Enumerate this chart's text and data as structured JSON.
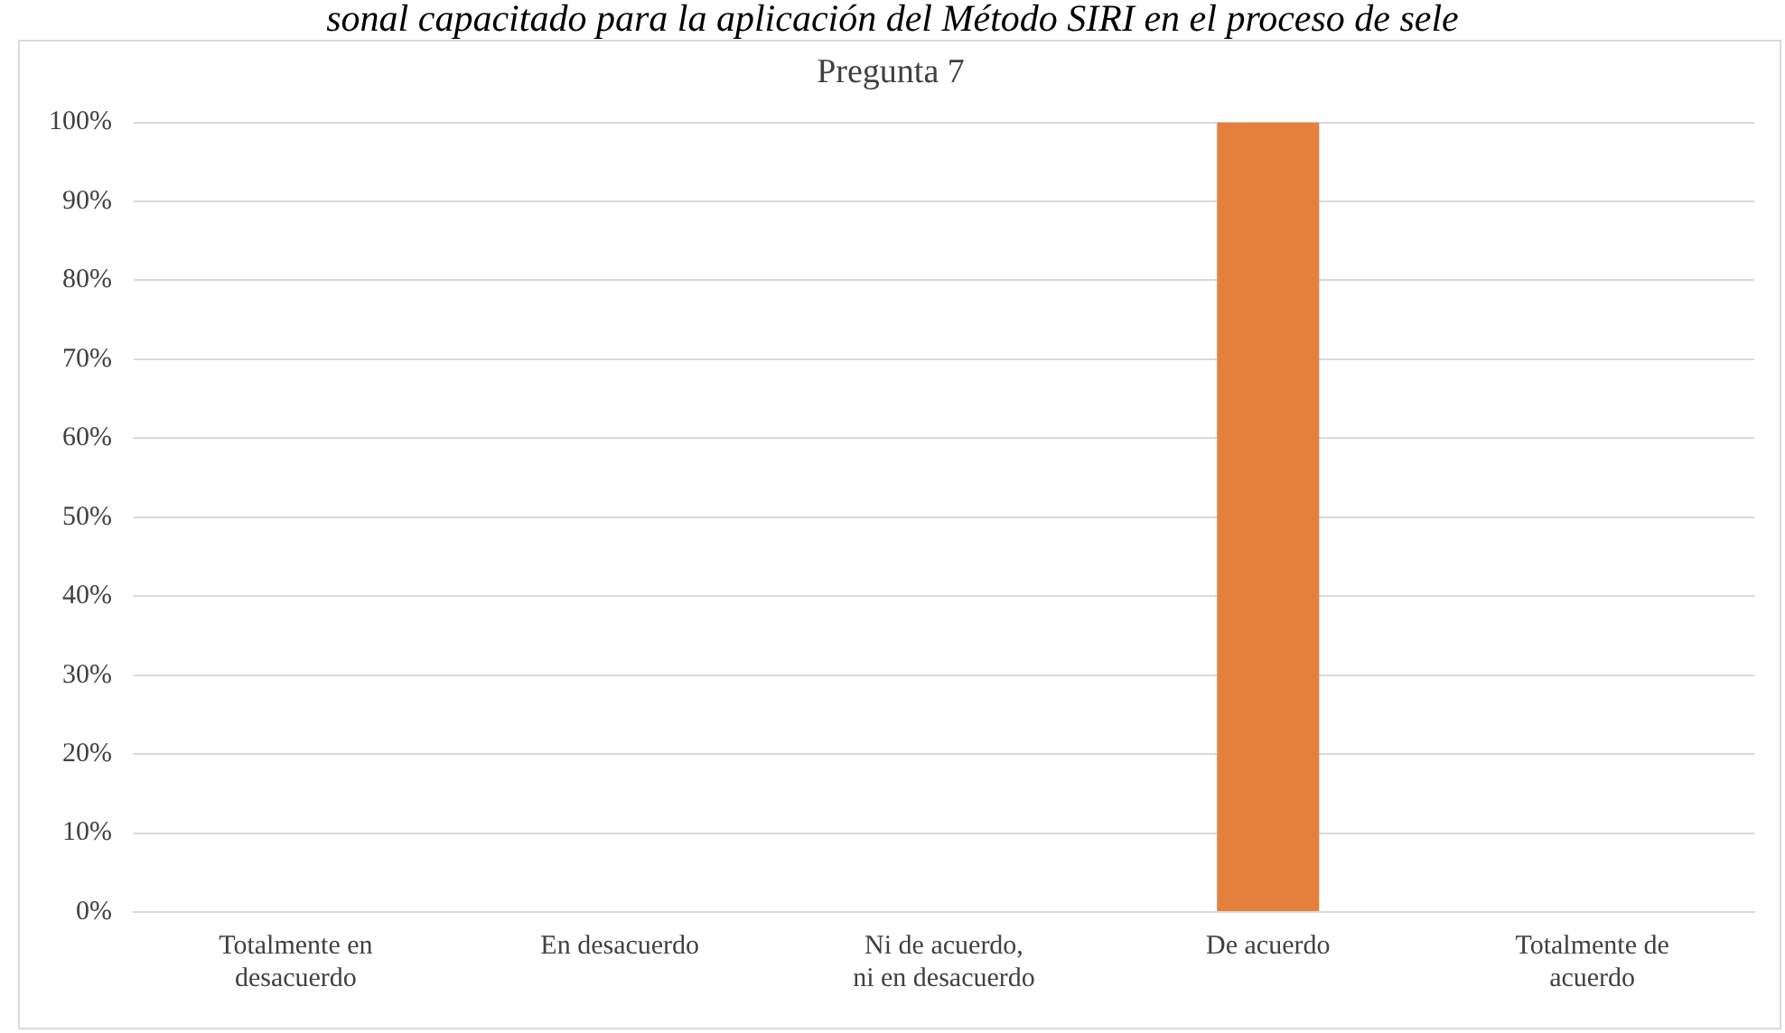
{
  "chart_data": {
    "type": "bar",
    "title": "Pregunta 7",
    "annotations": [
      "sonal capacitado para la aplicación del Método SIRI en el proceso de sele"
    ],
    "categories": [
      "Totalmente en desacuerdo",
      "En desacuerdo",
      "Ni de acuerdo, ni en desacuerdo",
      "De acuerdo",
      "Totalmente de acuerdo"
    ],
    "values": [
      0,
      0,
      0,
      100,
      0
    ],
    "color": "#e47f3c",
    "ylim": [
      0,
      100
    ],
    "yticks": [
      {
        "value": 0,
        "label": "0%"
      },
      {
        "value": 10,
        "label": "10%"
      },
      {
        "value": 20,
        "label": "20%"
      },
      {
        "value": 30,
        "label": "30%"
      },
      {
        "value": 40,
        "label": "40%"
      },
      {
        "value": 50,
        "label": "50%"
      },
      {
        "value": 60,
        "label": "60%"
      },
      {
        "value": 70,
        "label": "70%"
      },
      {
        "value": 80,
        "label": "80%"
      },
      {
        "value": 90,
        "label": "90%"
      },
      {
        "value": 100,
        "label": "100%"
      }
    ],
    "grid": "y",
    "legend": false
  }
}
